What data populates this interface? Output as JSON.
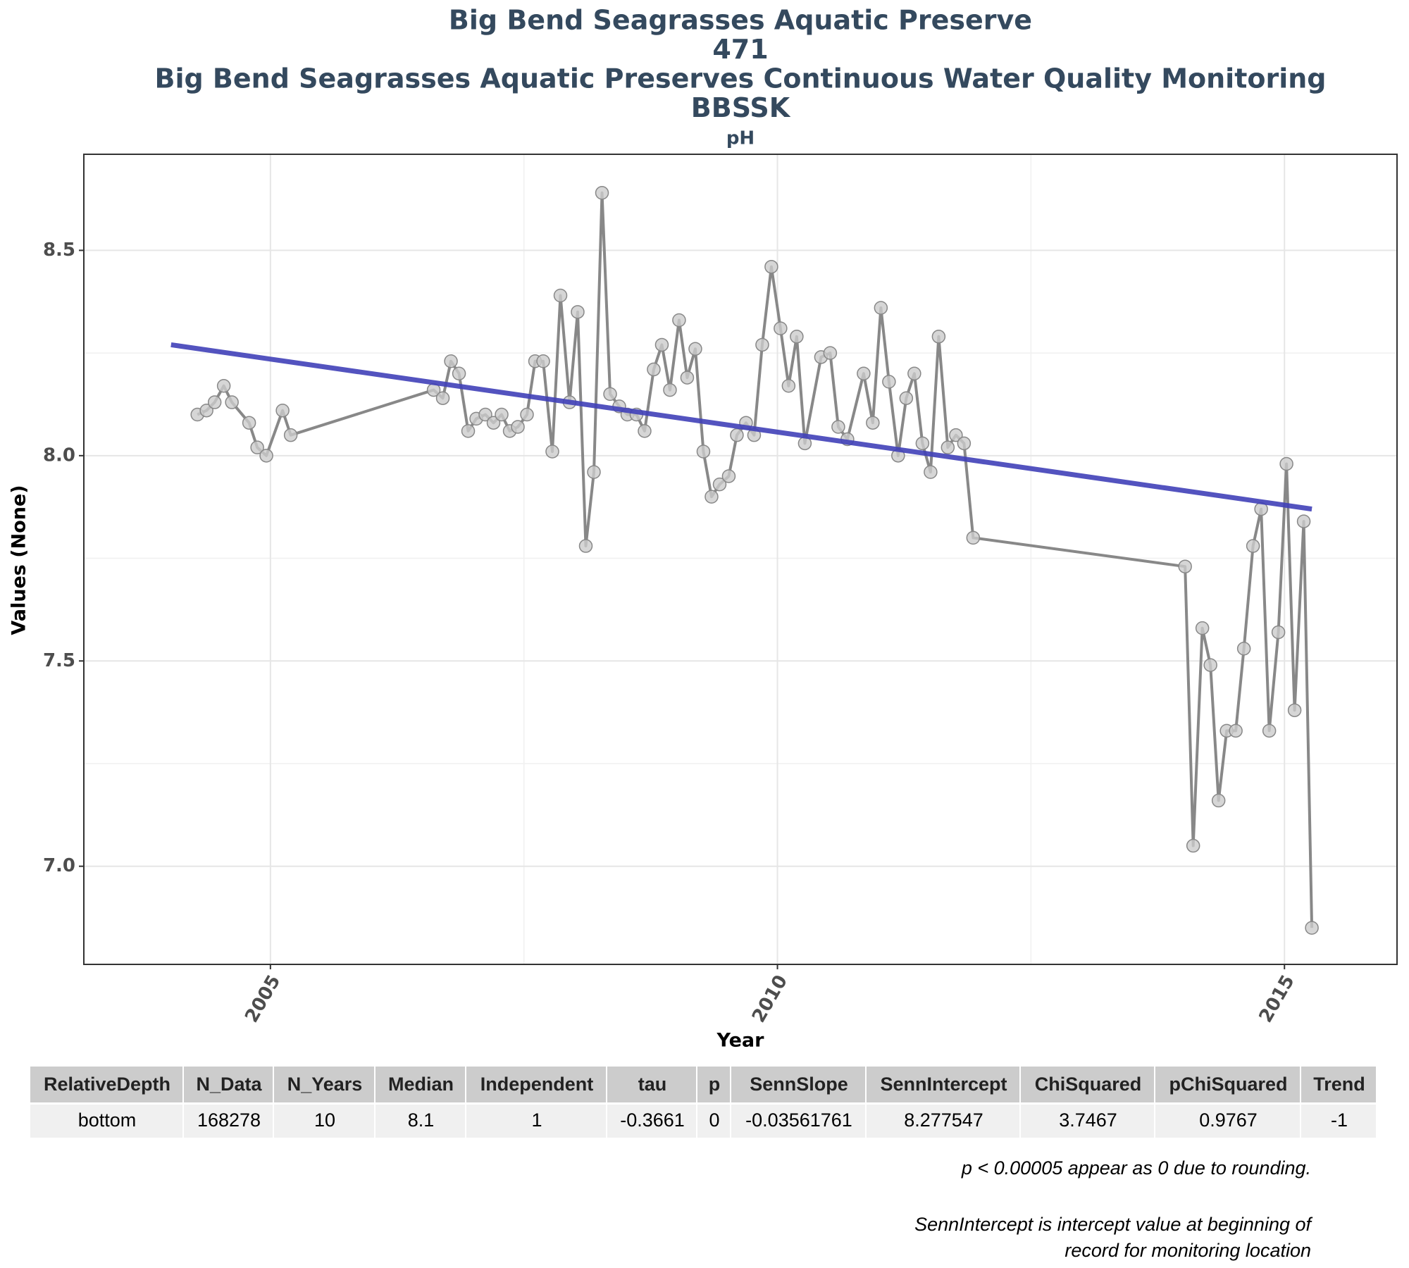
{
  "chart_data": {
    "type": "line",
    "title_lines": [
      "Big Bend Seagrasses Aquatic Preserve",
      "471",
      "Big Bend Seagrasses Aquatic Preserves Continuous Water Quality Monitoring",
      "BBSSK"
    ],
    "subtitle": "pH",
    "xlabel": "Year",
    "ylabel": "Values (None)",
    "xlim": [
      2003.16,
      2016.11
    ],
    "xticks": [
      2005,
      2010,
      2015
    ],
    "xminor": [
      2007.5,
      2012.5
    ],
    "ylim": [
      6.761,
      8.734
    ],
    "yticks": [
      {
        "value": 7,
        "label": "7.0"
      },
      {
        "value": 7.5,
        "label": "7.5"
      },
      {
        "value": 8,
        "label": "8.0"
      },
      {
        "value": 8.5,
        "label": "8.5"
      }
    ],
    "yminor": [
      7.25,
      7.75,
      8.25
    ],
    "grid": true,
    "series": [
      {
        "color": "#888888",
        "marker_fill": "#cccccc",
        "x": [
          2004.28,
          2004.37,
          2004.45,
          2004.54,
          2004.62,
          2004.79,
          2004.87,
          2004.96,
          2005.12,
          2005.2,
          2006.61,
          2006.7,
          2006.78,
          2006.86,
          2006.95,
          2007.03,
          2007.12,
          2007.2,
          2007.28,
          2007.36,
          2007.44,
          2007.53,
          2007.61,
          2007.69,
          2007.78,
          2007.86,
          2007.95,
          2008.03,
          2008.11,
          2008.19,
          2008.27,
          2008.35,
          2008.44,
          2008.52,
          2008.61,
          2008.69,
          2008.78,
          2008.86,
          2008.94,
          2009.03,
          2009.11,
          2009.19,
          2009.27,
          2009.35,
          2009.43,
          2009.52,
          2009.6,
          2009.69,
          2009.77,
          2009.85,
          2009.94,
          2010.03,
          2010.11,
          2010.19,
          2010.27,
          2010.43,
          2010.52,
          2010.6,
          2010.69,
          2010.85,
          2010.94,
          2011.02,
          2011.1,
          2011.19,
          2011.27,
          2011.35,
          2011.43,
          2011.51,
          2011.59,
          2011.68,
          2011.76,
          2011.84,
          2011.93,
          2014.02,
          2014.1,
          2014.19,
          2014.27,
          2014.35,
          2014.43,
          2014.52,
          2014.6,
          2014.69,
          2014.77,
          2014.85,
          2014.94,
          2015.02,
          2015.1,
          2015.19,
          2015.27
        ],
        "values": [
          8.1,
          8.11,
          8.13,
          8.17,
          8.13,
          8.08,
          8.02,
          8.0,
          8.11,
          8.05,
          8.16,
          8.14,
          8.23,
          8.2,
          8.06,
          8.09,
          8.1,
          8.08,
          8.1,
          8.06,
          8.07,
          8.1,
          8.23,
          8.23,
          8.01,
          8.39,
          8.13,
          8.35,
          7.78,
          7.96,
          8.64,
          8.15,
          8.12,
          8.1,
          8.1,
          8.06,
          8.21,
          8.27,
          8.16,
          8.33,
          8.19,
          8.26,
          8.01,
          7.9,
          7.93,
          7.95,
          8.05,
          8.08,
          8.05,
          8.27,
          8.46,
          8.31,
          8.17,
          8.29,
          8.03,
          8.24,
          8.25,
          8.07,
          8.04,
          8.2,
          8.08,
          8.36,
          8.18,
          8.0,
          8.14,
          8.2,
          8.03,
          7.96,
          8.29,
          8.02,
          8.05,
          8.03,
          7.8,
          7.73,
          7.05,
          7.58,
          7.49,
          7.16,
          7.33,
          7.33,
          7.53,
          7.78,
          7.87,
          7.33,
          7.57,
          7.98,
          7.38,
          7.84,
          6.85
        ]
      },
      {
        "color": "#4040b8",
        "x": [
          2004.02,
          2015.27
        ],
        "values": [
          8.27,
          7.87
        ]
      }
    ]
  },
  "table": {
    "columns": [
      "RelativeDepth",
      "N_Data",
      "N_Years",
      "Median",
      "Independent",
      "tau",
      "p",
      "SennSlope",
      "SennIntercept",
      "ChiSquared",
      "pChiSquared",
      "Trend"
    ],
    "rows": [
      [
        "bottom",
        "168278",
        "10",
        "8.1",
        "1",
        "-0.3661",
        "0",
        "-0.03561761",
        "8.277547",
        "3.7467",
        "0.9767",
        "-1"
      ]
    ]
  },
  "notes": [
    "p < 0.00005 appear as 0 due to rounding.",
    "SennIntercept is intercept value at beginning of",
    "record for monitoring location"
  ]
}
